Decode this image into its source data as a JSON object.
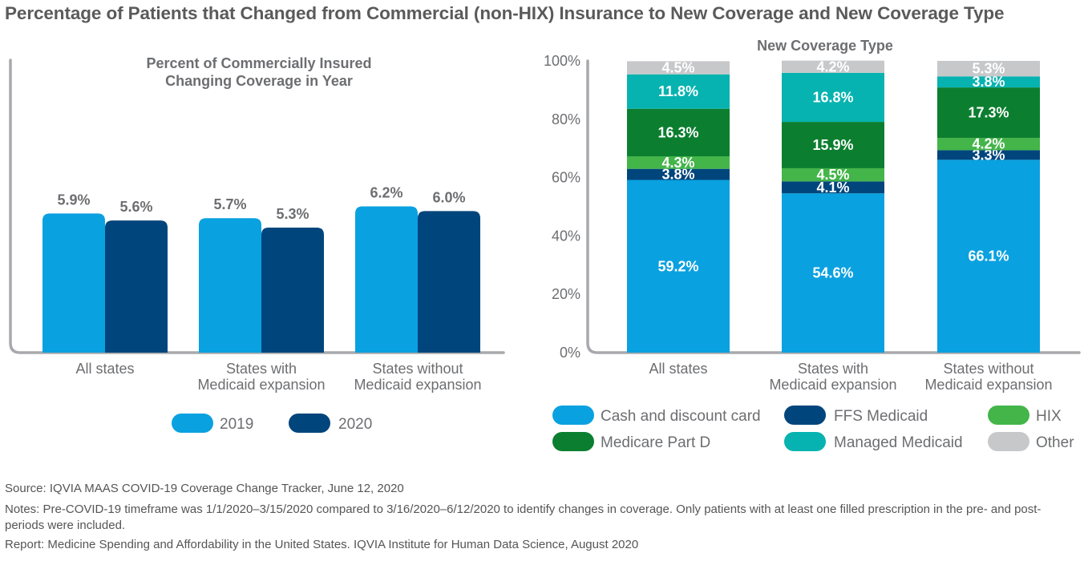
{
  "page": {
    "title": "Percentage of Patients that Changed from Commercial (non-HIX) Insurance to New Coverage and New Coverage Type"
  },
  "colors": {
    "cash": "#0aa1e0",
    "ffs": "#00457c",
    "hix": "#43b549",
    "medicare": "#0b7f2f",
    "managed": "#06b3b0",
    "other": "#c7c8ca",
    "y2019": "#0aa1e0",
    "y2020": "#00457c",
    "text_gray": "#6d6e71",
    "axis_gray": "#a7a9ac"
  },
  "chart_data": [
    {
      "type": "bar",
      "title": "Percent of Commercially Insured Changing Coverage in Year",
      "title_lines": [
        "Percent of Commercially Insured",
        "Changing Coverage in Year"
      ],
      "categories": [
        "All states",
        "States with Medicaid expansion",
        "States without Medicaid expansion"
      ],
      "category_lines": [
        [
          "All states"
        ],
        [
          "States with",
          "Medicaid expansion"
        ],
        [
          "States without",
          "Medicaid expansion"
        ]
      ],
      "series": [
        {
          "name": "2019",
          "values": [
            5.9,
            5.7,
            6.2
          ],
          "labels": [
            "5.9%",
            "5.7%",
            "6.2%"
          ]
        },
        {
          "name": "2020",
          "values": [
            5.6,
            5.3,
            6.0
          ],
          "labels": [
            "5.6%",
            "5.3%",
            "6.0%"
          ]
        }
      ],
      "ylim": [
        0,
        12.4
      ],
      "xlabel": "",
      "ylabel": "",
      "legend": "bottom"
    },
    {
      "type": "bar",
      "stacked": true,
      "title": "New Coverage Type",
      "categories": [
        "All states",
        "States with Medicaid expansion",
        "States without Medicaid expansion"
      ],
      "category_lines": [
        [
          "All states"
        ],
        [
          "States with",
          "Medicaid expansion"
        ],
        [
          "States without",
          "Medicaid expansion"
        ]
      ],
      "series": [
        {
          "name": "Cash and discount card",
          "key": "cash",
          "values": [
            59.2,
            54.6,
            66.1
          ],
          "labels": [
            "59.2%",
            "54.6%",
            "66.1%"
          ]
        },
        {
          "name": "FFS Medicaid",
          "key": "ffs",
          "values": [
            3.8,
            4.1,
            3.3
          ],
          "labels": [
            "3.8%",
            "4.1%",
            "3.3%"
          ]
        },
        {
          "name": "HIX",
          "key": "hix",
          "values": [
            4.3,
            4.5,
            4.2
          ],
          "labels": [
            "4.3%",
            "4.5%",
            "4.2%"
          ]
        },
        {
          "name": "Medicare Part D",
          "key": "medicare",
          "values": [
            16.3,
            15.9,
            17.3
          ],
          "labels": [
            "16.3%",
            "15.9%",
            "17.3%"
          ]
        },
        {
          "name": "Managed Medicaid",
          "key": "managed",
          "values": [
            11.8,
            16.8,
            3.8
          ],
          "labels": [
            "11.8%",
            "16.8%",
            "3.8%"
          ]
        },
        {
          "name": "Other",
          "key": "other",
          "values": [
            4.5,
            4.2,
            5.3
          ],
          "labels": [
            "4.5%",
            "4.2%",
            "5.3%"
          ]
        }
      ],
      "yticks": [
        0,
        20,
        40,
        60,
        80,
        100
      ],
      "ytick_labels": [
        "0%",
        "20%",
        "40%",
        "60%",
        "80%",
        "100%"
      ],
      "ylim": [
        0,
        100
      ],
      "xlabel": "",
      "ylabel": "",
      "legend": "bottom"
    }
  ],
  "footer": {
    "source": "Source: IQVIA MAAS COVID-19 Coverage Change Tracker, June 12, 2020",
    "notes": "Notes: Pre-COVID-19 timeframe was 1/1/2020–3/15/2020 compared to 3/16/2020–6/12/2020 to identify changes in coverage. Only patients with at least one filled prescription in the pre- and post- periods were included.",
    "report": "Report: Medicine Spending and Affordability in the United States. IQVIA Institute for Human Data Science, August 2020"
  }
}
